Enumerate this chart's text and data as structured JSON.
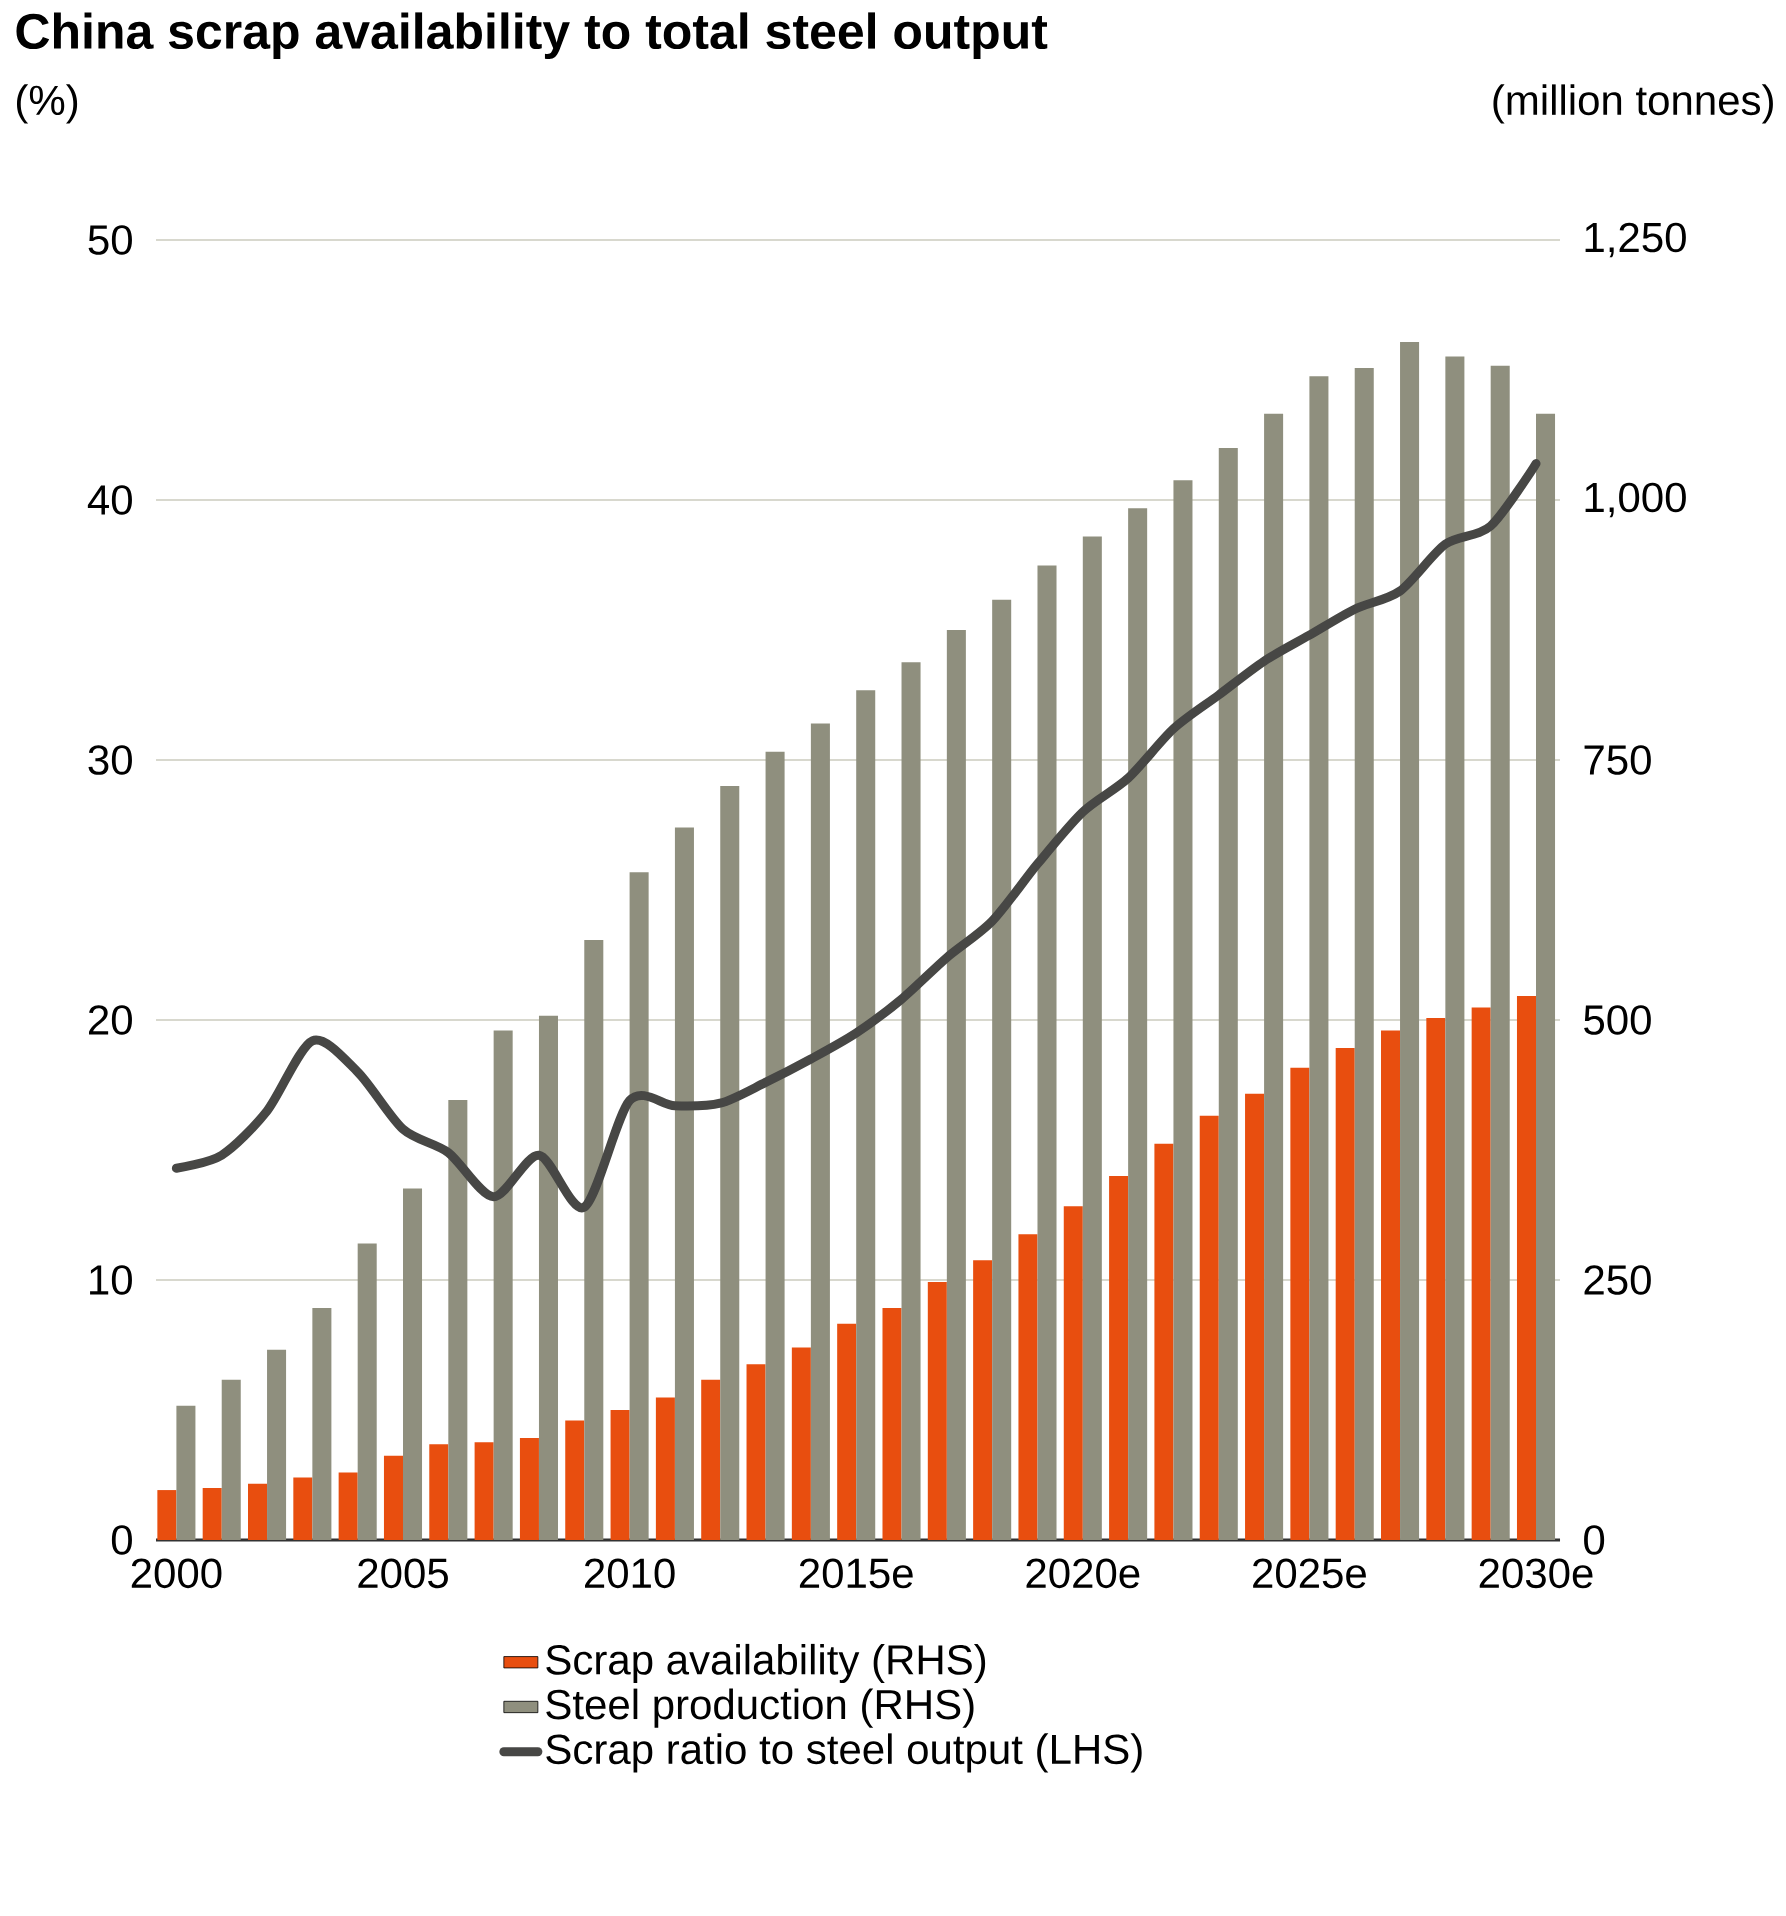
{
  "chart_data": {
    "type": "bar",
    "title": "China scrap availability to total steel output",
    "ylabel": "(%)",
    "y2label": "(million tonnes)",
    "categories": [
      "2000",
      null,
      null,
      null,
      null,
      "2005",
      null,
      null,
      null,
      null,
      "2010",
      null,
      null,
      null,
      null,
      "2015e",
      null,
      null,
      null,
      null,
      "2020e",
      null,
      null,
      null,
      null,
      "2025e",
      null,
      null,
      null,
      null,
      "2030e"
    ],
    "series": [
      {
        "name": "Scrap availability (RHS)",
        "axis": "y2",
        "color": "#e84e0f",
        "values": [
          48,
          50,
          54,
          60,
          65,
          81,
          92,
          94,
          98,
          115,
          125,
          137,
          154,
          169,
          185,
          208,
          223,
          248,
          269,
          294,
          321,
          350,
          381,
          408,
          429,
          454,
          473,
          490,
          502,
          512,
          523
        ]
      },
      {
        "name": "Steel production (RHS)",
        "axis": "y2",
        "color": "#8f8f7e",
        "values": [
          129,
          154,
          183,
          223,
          285,
          338,
          423,
          490,
          504,
          577,
          642,
          685,
          725,
          758,
          785,
          817,
          844,
          875,
          904,
          937,
          965,
          992,
          1019,
          1050,
          1083,
          1119,
          1127,
          1152,
          1138,
          1129,
          1083
        ]
      },
      {
        "name": "Scrap ratio to steel output (LHS)",
        "type": "line",
        "axis": "y",
        "color": "#474745",
        "values": [
          14.3,
          14.8,
          16.5,
          19.2,
          18.0,
          15.8,
          14.9,
          13.2,
          14.8,
          12.8,
          16.9,
          16.7,
          16.8,
          17.6,
          18.5,
          19.5,
          20.8,
          22.4,
          23.8,
          26.0,
          28.0,
          29.3,
          31.2,
          32.5,
          33.8,
          34.8,
          35.8,
          36.5,
          38.3,
          39.0,
          41.4
        ]
      }
    ],
    "ylim": [
      0,
      50
    ],
    "yticks": [
      0,
      10,
      20,
      30,
      40,
      50
    ],
    "y2lim": [
      0,
      1250
    ],
    "y2ticks": [
      0,
      250,
      500,
      750,
      {
        "value": 1000,
        "label": "1,000"
      },
      {
        "value": 1250,
        "label": "1,250"
      }
    ],
    "grid": "y",
    "legend": "bottom"
  }
}
